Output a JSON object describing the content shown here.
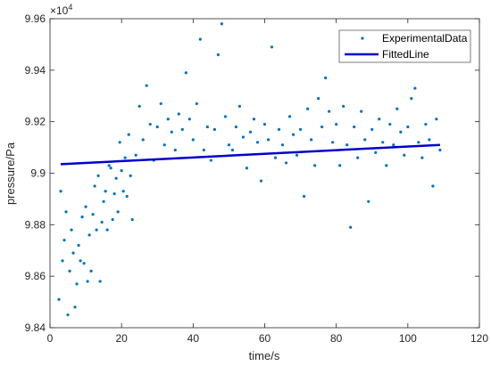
{
  "chart_data": {
    "type": "scatter",
    "xlabel": "time/s",
    "ylabel": "pressure/Pa",
    "y_exponent_label": "×10",
    "y_exponent_power": "4",
    "xlim": [
      0,
      120
    ],
    "ylim": [
      9.84,
      9.96
    ],
    "x_ticks": [
      0,
      20,
      40,
      60,
      80,
      100,
      120
    ],
    "x_tick_labels": [
      "0",
      "20",
      "40",
      "60",
      "80",
      "100",
      "120"
    ],
    "y_ticks": [
      9.84,
      9.86,
      9.88,
      9.9,
      9.92,
      9.94,
      9.96
    ],
    "y_tick_labels": [
      "9.84",
      "9.86",
      "9.88",
      "9.9",
      "9.92",
      "9.94",
      "9.96"
    ],
    "grid": false,
    "legend_position": "top-right",
    "series": [
      {
        "name": "ExperimentalData",
        "kind": "scatter",
        "color": "#0072BD",
        "points": [
          [
            2.5,
            9.851
          ],
          [
            3.0,
            9.893
          ],
          [
            3.5,
            9.866
          ],
          [
            4.0,
            9.874
          ],
          [
            4.5,
            9.885
          ],
          [
            5.0,
            9.845
          ],
          [
            5.5,
            9.862
          ],
          [
            6.0,
            9.878
          ],
          [
            6.5,
            9.869
          ],
          [
            7.0,
            9.848
          ],
          [
            7.5,
            9.857
          ],
          [
            8.0,
            9.872
          ],
          [
            8.5,
            9.866
          ],
          [
            9.0,
            9.883
          ],
          [
            9.5,
            9.865
          ],
          [
            10.0,
            9.887
          ],
          [
            10.5,
            9.858
          ],
          [
            11.0,
            9.876
          ],
          [
            11.5,
            9.862
          ],
          [
            12.0,
            9.884
          ],
          [
            12.5,
            9.895
          ],
          [
            13.0,
            9.878
          ],
          [
            13.5,
            9.899
          ],
          [
            14.0,
            9.858
          ],
          [
            14.5,
            9.881
          ],
          [
            15.0,
            9.889
          ],
          [
            15.5,
            9.893
          ],
          [
            16.0,
            9.878
          ],
          [
            16.5,
            9.903
          ],
          [
            17.0,
            9.902
          ],
          [
            17.5,
            9.882
          ],
          [
            18.0,
            9.892
          ],
          [
            18.5,
            9.898
          ],
          [
            19.0,
            9.885
          ],
          [
            19.5,
            9.912
          ],
          [
            20.0,
            9.901
          ],
          [
            20.5,
            9.893
          ],
          [
            21.0,
            9.906
          ],
          [
            21.5,
            9.891
          ],
          [
            22.0,
            9.915
          ],
          [
            22.5,
            9.899
          ],
          [
            23.0,
            9.882
          ],
          [
            24.0,
            9.907
          ],
          [
            25.0,
            9.926
          ],
          [
            26.0,
            9.913
          ],
          [
            27.0,
            9.934
          ],
          [
            28.0,
            9.919
          ],
          [
            29.0,
            9.905
          ],
          [
            30.0,
            9.918
          ],
          [
            31.0,
            9.927
          ],
          [
            32.0,
            9.911
          ],
          [
            33.0,
            9.921
          ],
          [
            34.0,
            9.916
          ],
          [
            35.0,
            9.909
          ],
          [
            36.0,
            9.923
          ],
          [
            37.0,
            9.917
          ],
          [
            38.0,
            9.939
          ],
          [
            39.0,
            9.921
          ],
          [
            40.0,
            9.913
          ],
          [
            41.0,
            9.927
          ],
          [
            42.0,
            9.952
          ],
          [
            43.0,
            9.909
          ],
          [
            44.0,
            9.918
          ],
          [
            45.0,
            9.905
          ],
          [
            46.0,
            9.917
          ],
          [
            47.0,
            9.946
          ],
          [
            48.0,
            9.958
          ],
          [
            49.0,
            9.922
          ],
          [
            50.0,
            9.911
          ],
          [
            51.0,
            9.909
          ],
          [
            52.0,
            9.918
          ],
          [
            53.0,
            9.926
          ],
          [
            54.0,
            9.914
          ],
          [
            55.0,
            9.902
          ],
          [
            56.0,
            9.916
          ],
          [
            57.0,
            9.921
          ],
          [
            58.0,
            9.912
          ],
          [
            59.0,
            9.897
          ],
          [
            60.0,
            9.919
          ],
          [
            61.0,
            9.913
          ],
          [
            62.0,
            9.949
          ],
          [
            63.0,
            9.906
          ],
          [
            64.0,
            9.917
          ],
          [
            65.0,
            9.911
          ],
          [
            66.0,
            9.904
          ],
          [
            67.0,
            9.922
          ],
          [
            68.0,
            9.915
          ],
          [
            69.0,
            9.907
          ],
          [
            70.0,
            9.917
          ],
          [
            71.0,
            9.891
          ],
          [
            72.0,
            9.925
          ],
          [
            73.0,
            9.913
          ],
          [
            74.0,
            9.903
          ],
          [
            75.0,
            9.929
          ],
          [
            76.0,
            9.918
          ],
          [
            77.0,
            9.937
          ],
          [
            78.0,
            9.924
          ],
          [
            79.0,
            9.912
          ],
          [
            80.0,
            9.919
          ],
          [
            81.0,
            9.903
          ],
          [
            82.0,
            9.926
          ],
          [
            83.0,
            9.911
          ],
          [
            84.0,
            9.879
          ],
          [
            85.0,
            9.918
          ],
          [
            86.0,
            9.906
          ],
          [
            87.0,
            9.924
          ],
          [
            88.0,
            9.913
          ],
          [
            89.0,
            9.889
          ],
          [
            90.0,
            9.917
          ],
          [
            91.0,
            9.908
          ],
          [
            92.0,
            9.921
          ],
          [
            93.0,
            9.912
          ],
          [
            94.0,
            9.903
          ],
          [
            95.0,
            9.919
          ],
          [
            96.0,
            9.911
          ],
          [
            97.0,
            9.925
          ],
          [
            98.0,
            9.916
          ],
          [
            99.0,
            9.907
          ],
          [
            100.0,
            9.918
          ],
          [
            101.0,
            9.929
          ],
          [
            102.0,
            9.933
          ],
          [
            103.0,
            9.912
          ],
          [
            104.0,
            9.906
          ],
          [
            105.0,
            9.919
          ],
          [
            106.0,
            9.913
          ],
          [
            107.0,
            9.895
          ],
          [
            108.0,
            9.921
          ],
          [
            109.0,
            9.909
          ]
        ]
      },
      {
        "name": "FittedLine",
        "kind": "line",
        "color": "#0000CC",
        "x": [
          3,
          109
        ],
        "y": [
          9.9035,
          9.911
        ]
      }
    ]
  }
}
